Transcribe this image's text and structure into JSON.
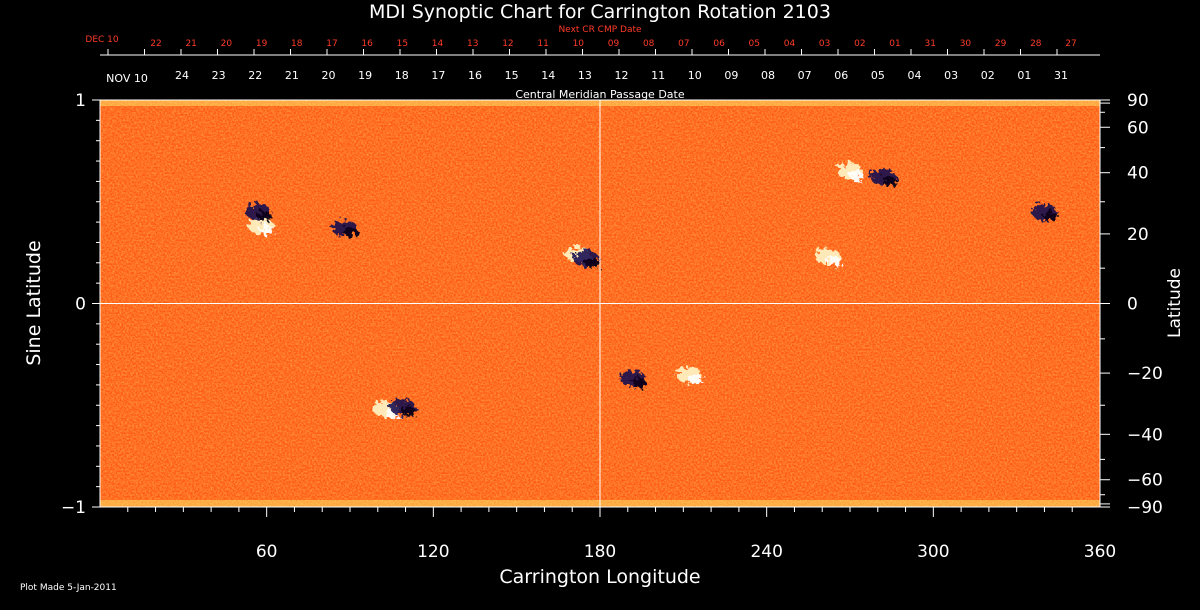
{
  "colors": {
    "background": "#000000",
    "text": "#ffffff",
    "next_cr_text": "#ff3b2a",
    "map_base": "#ff5a14",
    "map_positive": "#fff6c8",
    "map_negative": "#1a1050"
  },
  "chart_data": {
    "type": "heatmap",
    "title": "MDI Synoptic Chart for Carrington Rotation 2103",
    "xlabel": "Carrington Longitude",
    "ylabel_left": "Sine Latitude",
    "ylabel_right": "Latitude",
    "xlim": [
      0,
      360
    ],
    "ylim": [
      -1,
      1
    ],
    "x_ticks": [
      "60",
      "120",
      "180",
      "240",
      "300",
      "360"
    ],
    "x_tick_values": [
      60,
      120,
      180,
      240,
      300,
      360
    ],
    "y_ticks_left": [
      "1",
      "0",
      "−1"
    ],
    "y_tick_values_left": [
      1,
      0,
      -1
    ],
    "y_ticks_right": [
      "90",
      "60",
      "40",
      "20",
      "0",
      "−20",
      "−40",
      "−60",
      "−90"
    ],
    "y_tick_values_right": [
      90,
      60,
      40,
      20,
      0,
      -20,
      -40,
      -60,
      -90
    ],
    "grid": "crosshair at longitude 180 and sine latitude 0",
    "central_meridian_label": "Central Meridian Passage Date",
    "next_cr_label": "Next CR CMP Date",
    "next_cr_first_label": "DEC 10",
    "next_cr_dates": [
      "22",
      "21",
      "20",
      "19",
      "18",
      "17",
      "16",
      "15",
      "14",
      "13",
      "12",
      "11",
      "10",
      "09",
      "08",
      "07",
      "06",
      "05",
      "04",
      "03",
      "02",
      "01",
      "31",
      "30",
      "29",
      "28",
      "27"
    ],
    "cmp_first_label": "NOV 10",
    "cmp_dates": [
      "24",
      "23",
      "22",
      "21",
      "20",
      "19",
      "18",
      "17",
      "16",
      "15",
      "14",
      "13",
      "12",
      "11",
      "10",
      "09",
      "08",
      "07",
      "06",
      "05",
      "04",
      "03",
      "02",
      "01",
      "31"
    ],
    "active_regions": [
      {
        "lon": 58,
        "sinlat": 0.38,
        "polarity": "positive"
      },
      {
        "lon": 57,
        "sinlat": 0.45,
        "polarity": "negative"
      },
      {
        "lon": 172,
        "sinlat": 0.24,
        "polarity": "positive"
      },
      {
        "lon": 175,
        "sinlat": 0.22,
        "polarity": "negative"
      },
      {
        "lon": 270,
        "sinlat": 0.65,
        "polarity": "positive"
      },
      {
        "lon": 282,
        "sinlat": 0.62,
        "polarity": "negative"
      },
      {
        "lon": 262,
        "sinlat": 0.23,
        "polarity": "positive"
      },
      {
        "lon": 192,
        "sinlat": -0.37,
        "polarity": "negative"
      },
      {
        "lon": 212,
        "sinlat": -0.35,
        "polarity": "positive"
      },
      {
        "lon": 103,
        "sinlat": -0.52,
        "polarity": "positive"
      },
      {
        "lon": 109,
        "sinlat": -0.51,
        "polarity": "negative"
      },
      {
        "lon": 88,
        "sinlat": 0.37,
        "polarity": "negative"
      },
      {
        "lon": 340,
        "sinlat": 0.45,
        "polarity": "negative"
      }
    ]
  },
  "footer": {
    "plot_made": "Plot Made  5-Jan-2011"
  }
}
